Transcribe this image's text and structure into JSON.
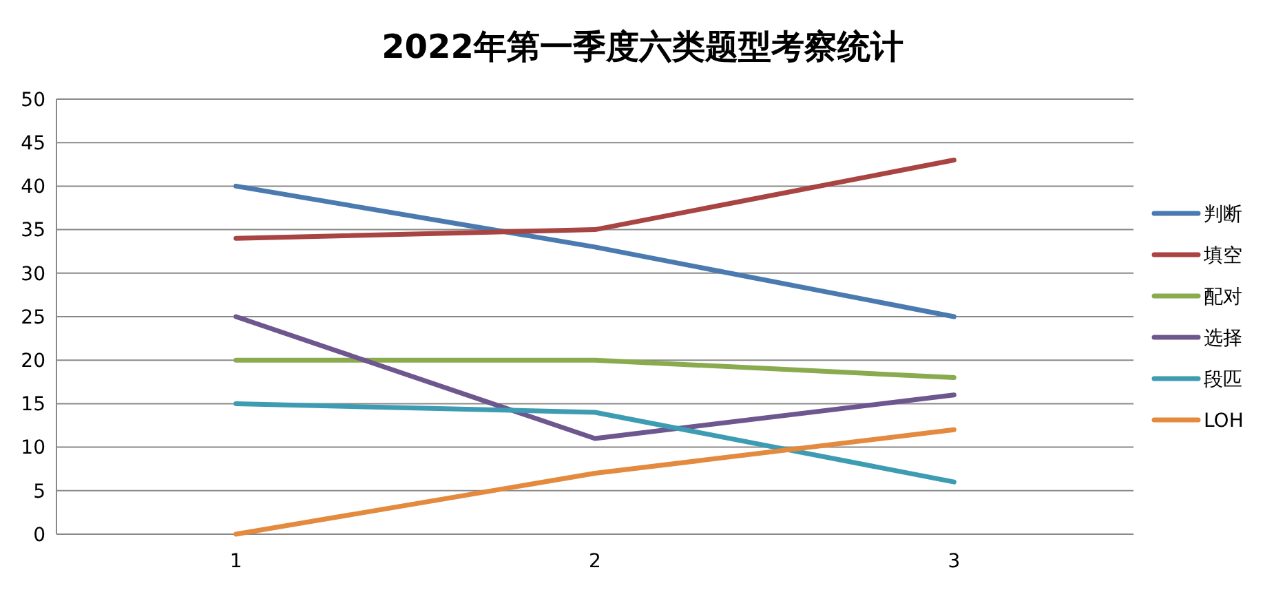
{
  "chart_data": {
    "type": "line",
    "title": "2022年第一季度六类题型考察统计",
    "categories": [
      "1",
      "2",
      "3"
    ],
    "ylim": [
      0,
      50
    ],
    "yticks": [
      0,
      5,
      10,
      15,
      20,
      25,
      30,
      35,
      40,
      45,
      50
    ],
    "grid": "y",
    "legend": "right",
    "marker": "none",
    "line_style": "solid",
    "series": [
      {
        "name": "判断",
        "color": "#4a7ab0",
        "values": [
          40,
          33,
          25
        ]
      },
      {
        "name": "填空",
        "color": "#a84442",
        "values": [
          34,
          35,
          43
        ]
      },
      {
        "name": "配对",
        "color": "#8aaa4e",
        "values": [
          20,
          20,
          18
        ]
      },
      {
        "name": "选择",
        "color": "#6e568e",
        "values": [
          25,
          11,
          16
        ]
      },
      {
        "name": "段匹",
        "color": "#3e9cb2",
        "values": [
          15,
          14,
          6
        ]
      },
      {
        "name": "LOH",
        "color": "#e38a3e",
        "values": [
          0,
          7,
          12
        ]
      }
    ]
  }
}
